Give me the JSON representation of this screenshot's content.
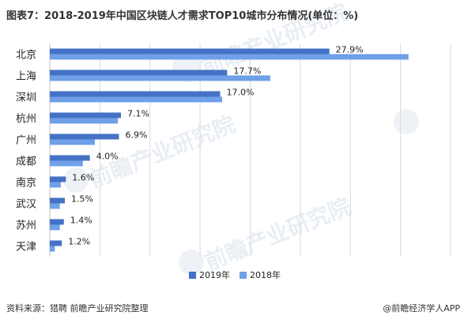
{
  "chart_data": {
    "type": "bar",
    "orientation": "horizontal",
    "title": "图表7：2018-2019年中国区块链人才需求TOP10城市分布情况(单位：%)",
    "categories": [
      "北京",
      "上海",
      "深圳",
      "杭州",
      "广州",
      "成都",
      "南京",
      "武汉",
      "苏州",
      "天津"
    ],
    "series": [
      {
        "name": "2019年",
        "color": "#4472c4",
        "values": [
          27.9,
          17.7,
          17.0,
          7.1,
          6.9,
          4.0,
          1.6,
          1.5,
          1.4,
          1.2
        ],
        "data_labels": [
          "27.9%",
          "17.7%",
          "17.0%",
          "7.1%",
          "6.9%",
          "4.0%",
          "1.6%",
          "1.5%",
          "1.4%",
          "1.2%"
        ]
      },
      {
        "name": "2018年",
        "color": "#6fa0e8",
        "values": [
          35.8,
          22.0,
          17.2,
          6.8,
          4.5,
          3.3,
          1.1,
          1.0,
          1.0,
          0.5
        ]
      }
    ],
    "xlim": [
      0,
      40
    ],
    "grid": true,
    "legend_position": "bottom-center"
  },
  "footer": {
    "source": "资料来源：猎聘 前瞻产业研究院整理",
    "brand": "@前瞻经济学人APP"
  }
}
